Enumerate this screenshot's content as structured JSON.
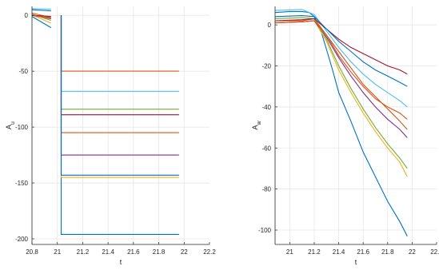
{
  "chart_data": [
    {
      "type": "line",
      "title": "",
      "xlabel": "t",
      "ylabel": "A_u",
      "xlim": [
        20.8,
        22.2
      ],
      "ylim": [
        -205,
        8
      ],
      "grid": true,
      "x_ticks": [
        20.8,
        21,
        21.2,
        21.4,
        21.6,
        21.8,
        22,
        22.2
      ],
      "x_tick_labels": [
        "20.8",
        "21",
        "21.2",
        "21.4",
        "21.6",
        "21.8",
        "22",
        "22.2"
      ],
      "y_ticks": [
        0,
        -50,
        -100,
        -150,
        -200
      ],
      "y_tick_labels": [
        "0",
        "-50",
        "-100",
        "-150",
        "-200"
      ],
      "pre_segment": {
        "x_start": 20.8,
        "x_end": 20.95
      },
      "post_segment": {
        "x_start": 21.03,
        "x_end": 21.96
      },
      "series": [
        {
          "color": "#0072BD",
          "pre_start": 5.0,
          "pre_end": 4.0,
          "post_level": -196
        },
        {
          "color": "#D95319",
          "pre_start": 2.0,
          "pre_end": -2.0,
          "post_level": -50
        },
        {
          "color": "#EDB120",
          "pre_start": 0.5,
          "pre_end": -7.0,
          "post_level": -145
        },
        {
          "color": "#7E2F8E",
          "pre_start": 0.0,
          "pre_end": -3.0,
          "post_level": -125
        },
        {
          "color": "#77AC30",
          "pre_start": 1.0,
          "pre_end": -4.5,
          "post_level": -84
        },
        {
          "color": "#4DBEEE",
          "pre_start": 6.0,
          "pre_end": 5.5,
          "post_level": -68
        },
        {
          "color": "#A2142F",
          "pre_start": 0.0,
          "pre_end": -1.0,
          "post_level": -89
        },
        {
          "color": "#D95319",
          "pre_start": 0.0,
          "pre_end": -2.5,
          "post_level": -105
        },
        {
          "color": "#0072BD",
          "pre_start": -1.0,
          "pre_end": -11.0,
          "post_level": -143
        }
      ]
    },
    {
      "type": "line",
      "title": "",
      "xlabel": "t",
      "ylabel": "A_w",
      "xlim": [
        20.88,
        22.2
      ],
      "ylim": [
        -107,
        9
      ],
      "grid": true,
      "x_ticks": [
        21,
        21.2,
        21.4,
        21.6,
        21.8,
        22,
        22.2
      ],
      "x_tick_labels": [
        "21",
        "21.2",
        "21.4",
        "21.6",
        "21.8",
        "22",
        "22.2"
      ],
      "y_ticks": [
        0,
        -20,
        -40,
        -60,
        -80,
        -100
      ],
      "y_tick_labels": [
        "0",
        "-20",
        "-40",
        "-60",
        "-80",
        "-100"
      ],
      "series": [
        {
          "color": "#0072BD",
          "x": [
            20.88,
            21.0,
            21.1,
            21.16,
            21.2,
            21.25,
            21.3,
            21.35,
            21.4,
            21.5,
            21.6,
            21.7,
            21.8,
            21.9,
            21.96
          ],
          "y": [
            6,
            6.5,
            6.5,
            6,
            4,
            -2,
            -12,
            -22,
            -33,
            -47,
            -62,
            -74,
            -86,
            -96,
            -103
          ]
        },
        {
          "color": "#D95319",
          "x": [
            20.88,
            21.1,
            21.2,
            21.3,
            21.4,
            21.5,
            21.6,
            21.7,
            21.8,
            21.9,
            21.96
          ],
          "y": [
            2,
            2,
            3,
            -5,
            -13,
            -21,
            -29,
            -35,
            -41,
            -47,
            -51
          ]
        },
        {
          "color": "#EDB120",
          "x": [
            20.88,
            21.1,
            21.2,
            21.3,
            21.4,
            21.5,
            21.6,
            21.7,
            21.8,
            21.9,
            21.96
          ],
          "y": [
            1,
            1.5,
            2,
            -8,
            -22,
            -33,
            -43,
            -52,
            -60,
            -67,
            -74
          ]
        },
        {
          "color": "#7E2F8E",
          "x": [
            20.88,
            21.1,
            21.2,
            21.3,
            21.4,
            21.5,
            21.6,
            21.7,
            21.8,
            21.9,
            21.96
          ],
          "y": [
            1,
            1.5,
            2,
            -6,
            -16,
            -25,
            -33,
            -40,
            -46,
            -51,
            -55
          ]
        },
        {
          "color": "#77AC30",
          "x": [
            20.88,
            21.1,
            21.2,
            21.3,
            21.4,
            21.5,
            21.6,
            21.7,
            21.8,
            21.9,
            21.96
          ],
          "y": [
            3,
            3.5,
            3,
            -7,
            -20,
            -31,
            -41,
            -50,
            -58,
            -65,
            -70
          ]
        },
        {
          "color": "#4DBEEE",
          "x": [
            20.88,
            21.1,
            21.2,
            21.3,
            21.4,
            21.5,
            21.6,
            21.7,
            21.8,
            21.9,
            21.96
          ],
          "y": [
            7,
            7.5,
            5,
            -3,
            -11,
            -18,
            -24,
            -29,
            -33,
            -37,
            -40
          ]
        },
        {
          "color": "#A2142F",
          "x": [
            20.88,
            21.1,
            21.2,
            21.3,
            21.4,
            21.5,
            21.6,
            21.7,
            21.8,
            21.9,
            21.96
          ],
          "y": [
            2,
            2.5,
            3,
            -2,
            -7,
            -11,
            -14,
            -17,
            -20,
            -22,
            -24
          ]
        },
        {
          "color": "#D95319",
          "x": [
            20.88,
            21.1,
            21.2,
            21.3,
            21.4,
            21.5,
            21.6,
            21.7,
            21.8,
            21.9,
            21.96
          ],
          "y": [
            1,
            1.5,
            2,
            -5,
            -15,
            -23,
            -30,
            -36,
            -40,
            -43,
            -46
          ]
        },
        {
          "color": "#0072BD",
          "x": [
            20.88,
            21.1,
            21.2,
            21.3,
            21.4,
            21.5,
            21.6,
            21.7,
            21.8,
            21.9,
            21.96
          ],
          "y": [
            4,
            4.5,
            4,
            -2,
            -8,
            -13,
            -18,
            -22,
            -25,
            -28,
            -30
          ]
        }
      ]
    }
  ]
}
